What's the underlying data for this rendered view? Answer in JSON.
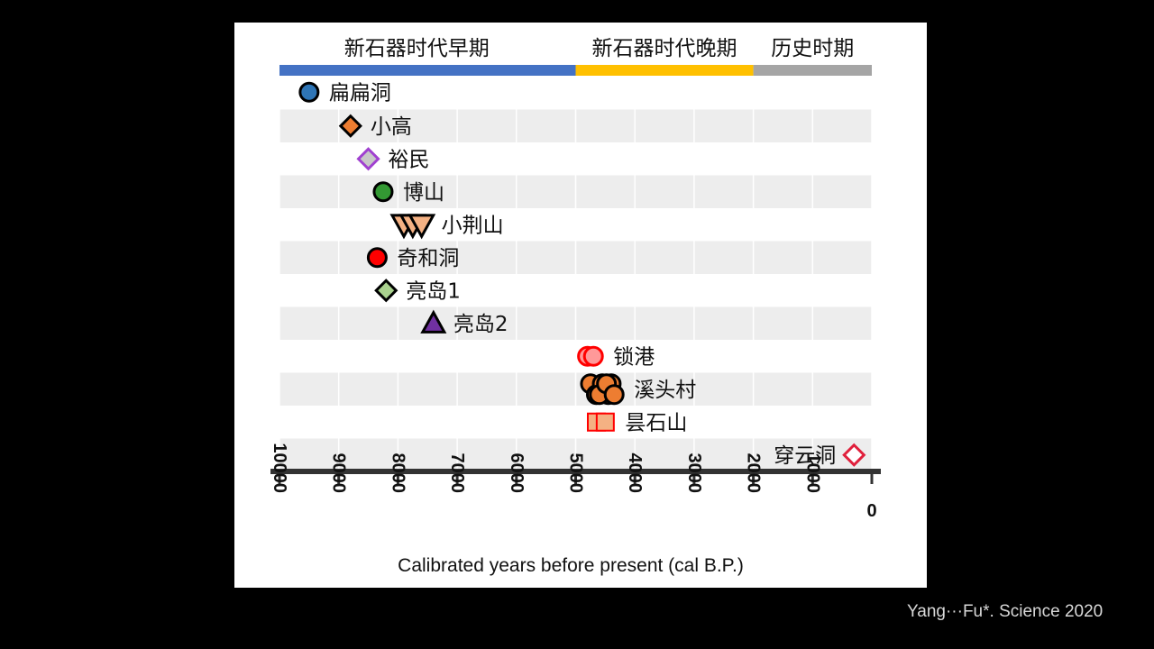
{
  "citation": "Yang···Fu*. Science 2020",
  "chart_data": {
    "type": "scatter",
    "xlabel": "Calibrated years before present (cal B.P.)",
    "xlim": [
      10000,
      0
    ],
    "x_reversed": true,
    "x_ticks": [
      10000,
      9000,
      8000,
      7000,
      6000,
      5000,
      4000,
      3000,
      2000,
      1000,
      0
    ],
    "grid": "alternating row bands",
    "periods": [
      {
        "label": "新石器时代早期",
        "start": 10000,
        "end": 5000,
        "color": "#4472c4"
      },
      {
        "label": "新石器时代晚期",
        "start": 5000,
        "end": 2000,
        "color": "#ffc000"
      },
      {
        "label": "历史时期",
        "start": 2000,
        "end": 0,
        "color": "#a5a5a5"
      }
    ],
    "sites": [
      {
        "label": "扁扁洞",
        "marker": "circle",
        "fill": "#2e75b6",
        "stroke": "#000000",
        "points": [
          9500
        ]
      },
      {
        "label": "小高",
        "marker": "diamond",
        "fill": "#ed7d31",
        "stroke": "#000000",
        "points": [
          8800
        ]
      },
      {
        "label": "裕民",
        "marker": "diamond",
        "fill": "#c8c8c8",
        "stroke": "#a040d0",
        "points": [
          8500
        ]
      },
      {
        "label": "博山",
        "marker": "circle",
        "fill": "#339933",
        "stroke": "#000000",
        "points": [
          8250
        ]
      },
      {
        "label": "小荆山",
        "marker": "triangle-down",
        "fill": "#f4b183",
        "stroke": "#000000",
        "points": [
          7900,
          7750,
          7600
        ]
      },
      {
        "label": "奇和洞",
        "marker": "circle",
        "fill": "#ff0000",
        "stroke": "#000000",
        "points": [
          8350
        ]
      },
      {
        "label": "亮岛1",
        "marker": "diamond",
        "fill": "#a9d18e",
        "stroke": "#000000",
        "points": [
          8200
        ]
      },
      {
        "label": "亮岛2",
        "marker": "triangle-up",
        "fill": "#7030a0",
        "stroke": "#000000",
        "points": [
          7400
        ]
      },
      {
        "label": "锁港",
        "marker": "circle",
        "fill": "#ff9999",
        "stroke": "#ff0000",
        "points": [
          4800,
          4700
        ]
      },
      {
        "label": "溪头村",
        "marker": "circle",
        "fill": "#ed7d31",
        "stroke": "#000000",
        "points": [
          4750,
          4650,
          4550,
          4450,
          4400,
          4600,
          4480,
          4350
        ]
      },
      {
        "label": "昙石山",
        "marker": "square",
        "fill": "#f4b183",
        "stroke": "#ff0000",
        "points": [
          4650,
          4500
        ]
      },
      {
        "label": "穿云洞",
        "marker": "diamond",
        "fill": "#ffffff",
        "stroke": "#e0203c",
        "points": [
          300
        ]
      }
    ]
  }
}
